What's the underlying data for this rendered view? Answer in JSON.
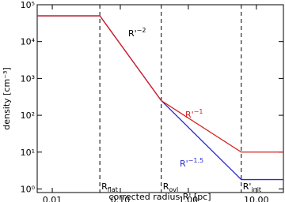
{
  "chart_data": {
    "type": "line",
    "xlabel": "corrected radius R' [pc]",
    "ylabel": "density [cm⁻³]",
    "xscale": "log",
    "yscale": "log",
    "xlim": [
      0.006,
      25
    ],
    "ylim": [
      0.8,
      100000
    ],
    "xticks": [
      0.01,
      {
        "value": 0.1,
        "label": "0.10"
      },
      {
        "value": 1,
        "label": "1.00"
      },
      {
        "value": 10,
        "label": "10.00"
      }
    ],
    "yticks": [
      {
        "value": 1,
        "label": "10⁰"
      },
      {
        "value": 10,
        "label": "10¹"
      },
      {
        "value": 100,
        "label": "10²"
      },
      {
        "value": 1000,
        "label": "10³"
      },
      {
        "value": 10000,
        "label": "10⁴"
      },
      {
        "value": 100000,
        "label": "10⁵"
      }
    ],
    "x": [
      0.006,
      0.05,
      0.4,
      6,
      25
    ],
    "series": [
      {
        "name": "R'^-1.5",
        "color": "#2b2bd6",
        "values": [
          50000,
          50000,
          250,
          1.8,
          1.8
        ]
      },
      {
        "name": "R'^-1",
        "color": "#d42020",
        "values": [
          50000,
          50000,
          250,
          10,
          10
        ]
      }
    ],
    "annotations": [
      {
        "text": "R'",
        "sup": "−2",
        "color": "#000000"
      },
      {
        "text": "R'",
        "sup": "−1",
        "color": "#d42020"
      },
      {
        "text": "R'",
        "sup": "−1.5",
        "color": "#2b2bd6"
      }
    ],
    "vlines": [
      {
        "x": 0.05,
        "label": "R",
        "sub": "flat"
      },
      {
        "x": 0.4,
        "label": "R",
        "sub": "ovl"
      },
      {
        "x": 6,
        "label": "R'",
        "sub": "init"
      }
    ]
  }
}
